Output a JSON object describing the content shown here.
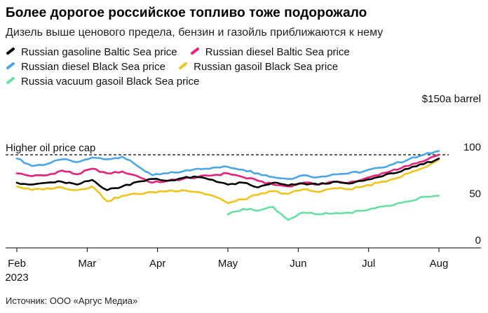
{
  "title": "Более дорогое российское топливо тоже подорожало",
  "subtitle": "Дизель выше ценового предела, бензин и газойль приближаются к нему",
  "source": "Источник: ООО «Аргус Медиа»",
  "chart_data": {
    "type": "line",
    "ylabel": "$150a barrel",
    "ylim": [
      0,
      150
    ],
    "yticks": [
      {
        "value": 0,
        "label": "0"
      },
      {
        "value": 50,
        "label": "50"
      },
      {
        "value": 100,
        "label": "100"
      }
    ],
    "xticks": [
      "Feb",
      "Mar",
      "Apr",
      "May",
      "Jun",
      "Jul",
      "Aug"
    ],
    "x_year_label": "2023",
    "reference_line": {
      "value": 100,
      "label": "Higher oil price cap"
    },
    "series": [
      {
        "name": "Russian diesel Black Sea price",
        "color": "#4aa6e8",
        "start_week": 0,
        "values": [
          96,
          88,
          90,
          95,
          92,
          97,
          95,
          98,
          88,
          78,
          80,
          82,
          85,
          86,
          87,
          84,
          80,
          76,
          74,
          78,
          76,
          79,
          80,
          82,
          86,
          90,
          95,
          100,
          104
        ]
      },
      {
        "name": "Russian diesel Baltic Sea price",
        "color": "#e8207a",
        "start_week": 0,
        "values": [
          80,
          77,
          78,
          83,
          79,
          85,
          80,
          82,
          77,
          70,
          72,
          74,
          76,
          78,
          80,
          76,
          72,
          68,
          66,
          70,
          68,
          71,
          70,
          74,
          78,
          84,
          88,
          93,
          100
        ]
      },
      {
        "name": "Russian gasoline Baltic Sea price",
        "color": "#000000",
        "start_week": 0,
        "values": [
          70,
          68,
          70,
          71,
          68,
          73,
          62,
          66,
          71,
          74,
          72,
          75,
          76,
          73,
          68,
          70,
          65,
          70,
          67,
          69,
          68,
          71,
          69,
          72,
          76,
          80,
          85,
          90,
          96
        ]
      },
      {
        "name": "Russian gasoil Black Sea price",
        "color": "#f0c419",
        "start_week": 0,
        "values": [
          66,
          62,
          64,
          65,
          62,
          66,
          50,
          56,
          58,
          60,
          61,
          62,
          60,
          56,
          48,
          52,
          57,
          61,
          58,
          63,
          60,
          64,
          63,
          66,
          70,
          74,
          80,
          86,
          95
        ]
      },
      {
        "name": "Russia vacuum gasoil Black Sea price",
        "color": "#66e0a0",
        "start_week": 14,
        "values": [
          36,
          42,
          40,
          44,
          30,
          38,
          36,
          37,
          38,
          40,
          44,
          46,
          50,
          55,
          56
        ]
      }
    ]
  }
}
